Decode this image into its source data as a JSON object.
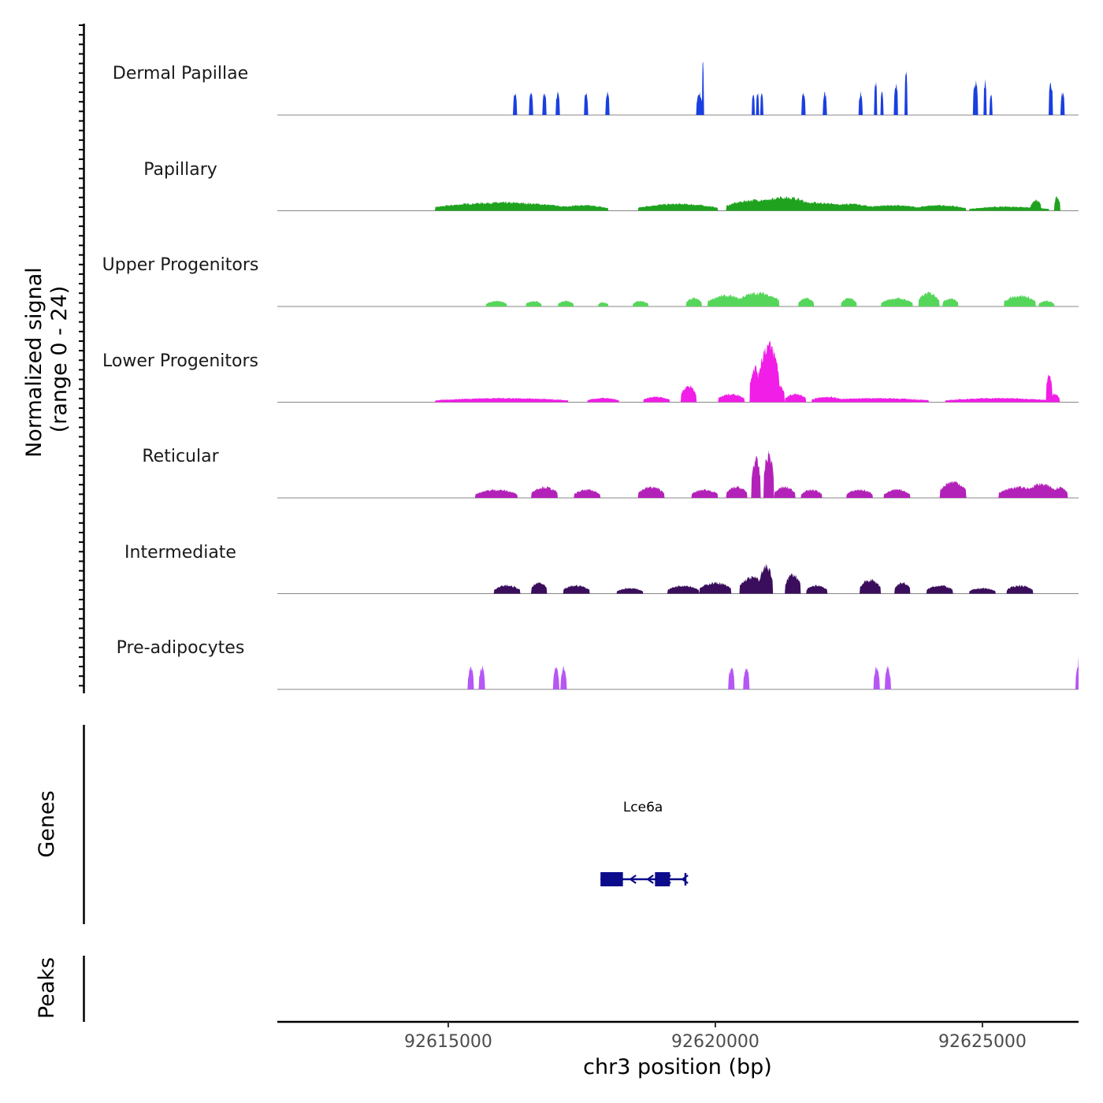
{
  "chart_data": {
    "type": "area",
    "title": "",
    "chromosome": "chr3",
    "xlabel": "chr3 position (bp)",
    "ylabel_line1": "Normalized signal",
    "ylabel_line2": "(range 0 - 24)",
    "ylim": [
      0,
      24
    ],
    "xlim": [
      92611800,
      92626800
    ],
    "x_ticks": [
      92615000,
      92620000,
      92625000
    ],
    "x_tick_labels": [
      "92615000",
      "92620000",
      "92625000"
    ],
    "tracks": [
      {
        "name": "Dermal Papillae",
        "color": "#1a3fe0",
        "peaks": [
          [
            92616250,
            80,
            8
          ],
          [
            92616550,
            80,
            8
          ],
          [
            92616800,
            80,
            8
          ],
          [
            92617050,
            80,
            8
          ],
          [
            92617580,
            80,
            8
          ],
          [
            92617980,
            80,
            8
          ],
          [
            92619770,
            40,
            20
          ],
          [
            92619700,
            120,
            8
          ],
          [
            92620710,
            60,
            8
          ],
          [
            92620790,
            60,
            8
          ],
          [
            92620870,
            60,
            8
          ],
          [
            92621650,
            80,
            8
          ],
          [
            92622050,
            80,
            8
          ],
          [
            92622720,
            80,
            8
          ],
          [
            92623000,
            60,
            12
          ],
          [
            92623120,
            60,
            8
          ],
          [
            92623380,
            80,
            12
          ],
          [
            92623570,
            60,
            16
          ],
          [
            92624870,
            100,
            12
          ],
          [
            92625050,
            60,
            12
          ],
          [
            92625160,
            60,
            8
          ],
          [
            92626280,
            80,
            12
          ],
          [
            92626500,
            80,
            8
          ]
        ]
      },
      {
        "name": "Papillary",
        "color": "#1fa31f",
        "peaks": [
          [
            92616000,
            2500,
            3
          ],
          [
            92617500,
            1000,
            2
          ],
          [
            92619300,
            1500,
            2.5
          ],
          [
            92620800,
            1200,
            4
          ],
          [
            92621300,
            1000,
            5
          ],
          [
            92621800,
            1500,
            3
          ],
          [
            92622500,
            1000,
            2.5
          ],
          [
            92623300,
            1200,
            2
          ],
          [
            92624200,
            1000,
            2
          ],
          [
            92625500,
            1500,
            1.5
          ],
          [
            92626000,
            200,
            4
          ],
          [
            92626400,
            120,
            5
          ]
        ]
      },
      {
        "name": "Upper Progenitors",
        "color": "#55d65a",
        "peaks": [
          [
            92615900,
            400,
            2
          ],
          [
            92616600,
            300,
            2
          ],
          [
            92617200,
            300,
            2
          ],
          [
            92617900,
            200,
            1.5
          ],
          [
            92618600,
            300,
            2
          ],
          [
            92619600,
            300,
            3
          ],
          [
            92620200,
            700,
            4
          ],
          [
            92620800,
            800,
            5
          ],
          [
            92621700,
            300,
            3
          ],
          [
            92622500,
            300,
            3
          ],
          [
            92623400,
            600,
            3
          ],
          [
            92624000,
            400,
            5
          ],
          [
            92624400,
            300,
            3
          ],
          [
            92625700,
            600,
            4
          ],
          [
            92626200,
            300,
            2
          ]
        ]
      },
      {
        "name": "Lower Progenitors",
        "color": "#f01ee6",
        "peaks": [
          [
            92616000,
            2500,
            1.5
          ],
          [
            92617900,
            600,
            1.5
          ],
          [
            92618900,
            500,
            2
          ],
          [
            92619500,
            300,
            6
          ],
          [
            92620300,
            500,
            3
          ],
          [
            92620740,
            200,
            13
          ],
          [
            92621000,
            400,
            21
          ],
          [
            92621200,
            200,
            6
          ],
          [
            92621500,
            400,
            3
          ],
          [
            92622100,
            600,
            2
          ],
          [
            92623000,
            2000,
            1.5
          ],
          [
            92625300,
            2000,
            1.5
          ],
          [
            92626250,
            120,
            10
          ],
          [
            92626350,
            200,
            3
          ]
        ]
      },
      {
        "name": "Reticular",
        "color": "#b322b8",
        "peaks": [
          [
            92615900,
            800,
            3
          ],
          [
            92616800,
            500,
            4
          ],
          [
            92617600,
            500,
            3
          ],
          [
            92618800,
            500,
            4
          ],
          [
            92619800,
            500,
            3
          ],
          [
            92620400,
            400,
            4
          ],
          [
            92620760,
            180,
            14
          ],
          [
            92621000,
            200,
            16
          ],
          [
            92621300,
            400,
            4
          ],
          [
            92621800,
            400,
            3
          ],
          [
            92622700,
            500,
            3
          ],
          [
            92623400,
            500,
            3
          ],
          [
            92624450,
            500,
            6
          ],
          [
            92625700,
            800,
            4
          ],
          [
            92626100,
            600,
            5
          ],
          [
            92626450,
            300,
            4
          ]
        ]
      },
      {
        "name": "Intermediate",
        "color": "#3a0e5c",
        "peaks": [
          [
            92616100,
            500,
            3
          ],
          [
            92616700,
            300,
            4
          ],
          [
            92617400,
            500,
            3
          ],
          [
            92618400,
            500,
            2
          ],
          [
            92619400,
            600,
            3
          ],
          [
            92620000,
            600,
            4
          ],
          [
            92620700,
            500,
            6
          ],
          [
            92620950,
            250,
            10
          ],
          [
            92621450,
            300,
            7
          ],
          [
            92621900,
            400,
            3
          ],
          [
            92622900,
            400,
            5
          ],
          [
            92623500,
            300,
            4
          ],
          [
            92624200,
            500,
            3
          ],
          [
            92625000,
            500,
            2
          ],
          [
            92625700,
            500,
            3
          ]
        ]
      },
      {
        "name": "Pre-adipocytes",
        "color": "#b657f5",
        "peaks": [
          [
            92615420,
            110,
            8
          ],
          [
            92615630,
            110,
            8
          ],
          [
            92617020,
            110,
            8
          ],
          [
            92617160,
            110,
            8
          ],
          [
            92620300,
            110,
            8
          ],
          [
            92620580,
            110,
            8
          ],
          [
            92623020,
            110,
            8
          ],
          [
            92623230,
            110,
            8
          ],
          [
            92626790,
            90,
            8
          ],
          [
            92626810,
            40,
            17
          ]
        ]
      }
    ],
    "genes": [
      {
        "name": "Lce6a",
        "strand": "-",
        "start": 92617850,
        "end": 92619440,
        "exons": [
          [
            92617850,
            92618270
          ],
          [
            92618870,
            92619150
          ]
        ],
        "color": "#0b0b8c"
      }
    ],
    "peaks_track_label": "Peaks",
    "genes_track_label": "Genes"
  }
}
